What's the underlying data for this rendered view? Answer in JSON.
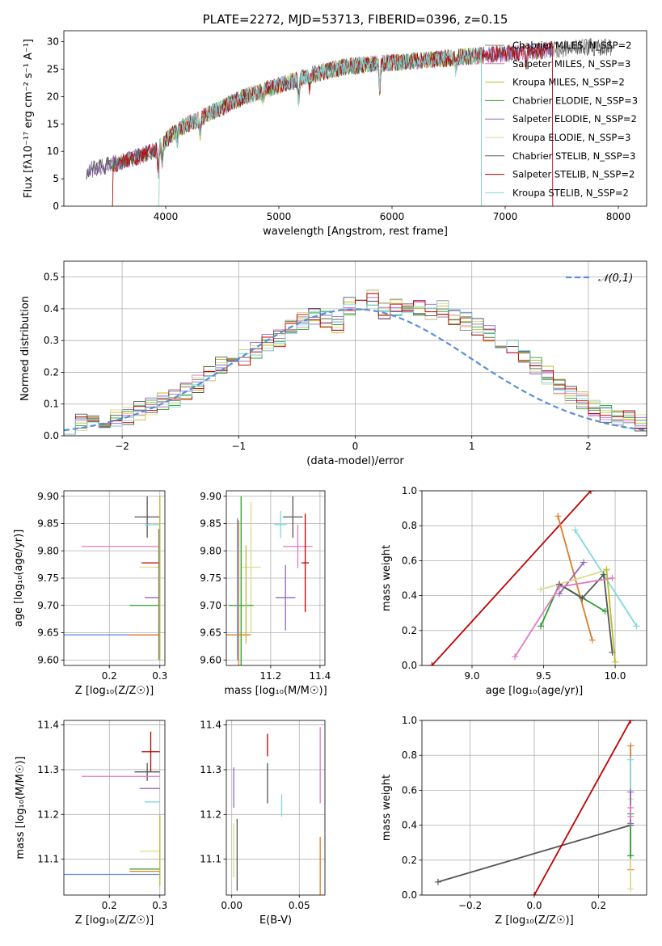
{
  "figure": {
    "background": "#ffffff",
    "palette": {
      "Chabrier MILES": "#7f7f7f",
      "Salpeter MILES": "#e377c2",
      "Kroupa MILES": "#bcbd22",
      "Chabrier ELODIE": "#2ca02c",
      "Salpeter ELODIE": "#9467bd",
      "Kroupa ELODIE": "#dbdb8d",
      "Chabrier STELIB": "#555555",
      "Salpeter STELIB": "#c00000",
      "Kroupa STELIB": "#7fd9e0",
      "normal": "#5b8ed6",
      "extra_orange": "#e07b27",
      "extra_blue": "#6a8fd8",
      "extra_green": "#4c8f4c"
    }
  },
  "chart_data": [
    {
      "id": "spectrum",
      "type": "line",
      "title": "PLATE=2272, MJD=53713, FIBERID=0396, z=0.15",
      "xlabel": "wavelength [Angstrom, rest frame]",
      "ylabel": "Flux [fλ10⁻¹⁷ erg cm⁻² s⁻¹ A⁻¹]",
      "xlim": [
        3100,
        8250
      ],
      "ylim": [
        0,
        32
      ],
      "xticks": [
        4000,
        5000,
        6000,
        7000,
        8000
      ],
      "yticks": [
        0,
        5,
        10,
        15,
        20,
        25,
        30
      ],
      "grid": false,
      "legend_position": "top-right",
      "series": [
        {
          "name": "Chabrier MILES, N_SSP=2",
          "color": "#7f7f7f"
        },
        {
          "name": "Salpeter MILES, N_SSP=3",
          "color": "#e377c2"
        },
        {
          "name": "Kroupa MILES, N_SSP=2",
          "color": "#bcbd22"
        },
        {
          "name": "Chabrier ELODIE, N_SSP=3",
          "color": "#2ca02c"
        },
        {
          "name": "Salpeter ELODIE, N_SSP=2",
          "color": "#9467bd"
        },
        {
          "name": "Kroupa ELODIE, N_SSP=3",
          "color": "#dbdb8d"
        },
        {
          "name": "Chabrier STELIB, N_SSP=3",
          "color": "#555555"
        },
        {
          "name": "Salpeter STELIB, N_SSP=2",
          "color": "#c00000"
        },
        {
          "name": "Kroupa STELIB, N_SSP=2",
          "color": "#7fd9e0"
        }
      ],
      "continuum": {
        "x": [
          3300,
          3600,
          3900,
          4100,
          4400,
          4700,
          5000,
          5300,
          5600,
          5900,
          6200,
          6500,
          6800,
          7100,
          7400,
          7700,
          7950
        ],
        "y": [
          6.5,
          8,
          10,
          14,
          17,
          20,
          22,
          24,
          25.5,
          26,
          26.5,
          27,
          27.5,
          28,
          28.5,
          29,
          29
        ]
      }
    },
    {
      "id": "residuals",
      "type": "histogram",
      "xlabel": "(data-model)/error",
      "ylabel": "Normed distribution",
      "xlim": [
        -2.5,
        2.5
      ],
      "ylim": [
        0,
        0.55
      ],
      "xticks": [
        -2,
        -1,
        0,
        1,
        2
      ],
      "yticks": [
        0.0,
        0.1,
        0.2,
        0.3,
        0.4,
        0.5
      ],
      "grid": true,
      "legend_position": "top-right",
      "legend": [
        "𝒩(0,1)"
      ],
      "bin_edges_start": -2.5,
      "bin_width": 0.1,
      "base_heights": [
        0.035,
        0.04,
        0.045,
        0.05,
        0.055,
        0.06,
        0.08,
        0.095,
        0.11,
        0.12,
        0.14,
        0.165,
        0.19,
        0.22,
        0.23,
        0.25,
        0.27,
        0.29,
        0.31,
        0.34,
        0.36,
        0.38,
        0.37,
        0.35,
        0.41,
        0.4,
        0.43,
        0.39,
        0.4,
        0.41,
        0.4,
        0.39,
        0.4,
        0.38,
        0.36,
        0.34,
        0.32,
        0.3,
        0.28,
        0.25,
        0.22,
        0.19,
        0.16,
        0.13,
        0.11,
        0.09,
        0.07,
        0.06,
        0.05,
        0.04
      ]
    },
    {
      "id": "age_vs_Z",
      "type": "errorbar",
      "xlabel": "Z [log₁₀(Z/Z☉)]",
      "ylabel": "age  [log₁₀(age/yr)]",
      "xlim": [
        0.11,
        0.31
      ],
      "ylim": [
        9.59,
        9.91
      ],
      "xticks": [
        0.2,
        0.3
      ],
      "yticks": [
        9.6,
        9.65,
        9.7,
        9.75,
        9.8,
        9.85,
        9.9
      ],
      "grid": true,
      "points": [
        {
          "x": 0.275,
          "y": 9.862,
          "xerr": [
            0.025,
            0.025
          ],
          "yerr": 0.038,
          "color": "#555555"
        },
        {
          "x": 0.285,
          "y": 9.848,
          "xerr": [
            0.015,
            0.015
          ],
          "yerr": 0,
          "color": "#7fd9e0"
        },
        {
          "x": 0.23,
          "y": 9.808,
          "xerr": [
            0.085,
            0.07
          ],
          "yerr": 0,
          "color": "#e377c2"
        },
        {
          "x": 0.282,
          "y": 9.778,
          "xerr": [
            0.018,
            0.018
          ],
          "yerr": 0,
          "color": "#c00000"
        },
        {
          "x": 0.28,
          "y": 9.77,
          "xerr": [
            0.02,
            0.02
          ],
          "yerr": 0,
          "color": "#dbdb8d"
        },
        {
          "x": 0.285,
          "y": 9.714,
          "xerr": [
            0.015,
            0.015
          ],
          "yerr": 0,
          "color": "#9467bd"
        },
        {
          "x": 0.27,
          "y": 9.7,
          "xerr": [
            0.03,
            0.03
          ],
          "yerr": 0,
          "color": "#2ca02c"
        },
        {
          "x": 0.23,
          "y": 9.646,
          "xerr": [
            0.12,
            0.07
          ],
          "yerr": 0,
          "color": "#6a8fd8"
        },
        {
          "x": 0.27,
          "y": 9.646,
          "xerr": [
            0.03,
            0.03
          ],
          "yerr": 0,
          "color": "#e07b27"
        },
        {
          "x": 0.3,
          "y": 9.75,
          "xerr": [
            0,
            0
          ],
          "yerr": 0.15,
          "color": "#bcbd22"
        },
        {
          "x": 0.298,
          "y": 9.72,
          "xerr": [
            0,
            0
          ],
          "yerr": 0.12,
          "color": "#7f7f7f"
        }
      ]
    },
    {
      "id": "age_vs_mass",
      "type": "errorbar",
      "xlabel": "mass [log₁₀(M/M☉)]",
      "ylabel": "",
      "xlim": [
        11.02,
        11.42
      ],
      "ylim": [
        9.59,
        9.91
      ],
      "xticks": [
        11.2,
        11.4
      ],
      "yticks": [
        9.6,
        9.65,
        9.7,
        9.75,
        9.8,
        9.85,
        9.9
      ],
      "grid": true,
      "points": [
        {
          "x": 11.29,
          "y": 9.862,
          "xerr": 0.04,
          "yerr": 0.038,
          "color": "#555555"
        },
        {
          "x": 11.24,
          "y": 9.848,
          "xerr": 0.025,
          "yerr": 0.025,
          "color": "#7fd9e0"
        },
        {
          "x": 11.31,
          "y": 9.808,
          "xerr": 0.06,
          "yerr": 0.04,
          "color": "#e377c2"
        },
        {
          "x": 11.34,
          "y": 9.778,
          "xerr": 0.015,
          "yerr": 0.09,
          "color": "#c00000"
        },
        {
          "x": 11.12,
          "y": 9.77,
          "xerr": 0.04,
          "yerr": 0.12,
          "color": "#dbdb8d"
        },
        {
          "x": 11.26,
          "y": 9.714,
          "xerr": 0.04,
          "yerr": 0.06,
          "color": "#9467bd"
        },
        {
          "x": 11.08,
          "y": 9.7,
          "xerr": 0.05,
          "yerr": 0.2,
          "color": "#2ca02c"
        },
        {
          "x": 11.07,
          "y": 9.646,
          "xerr": 0.05,
          "yerr": 0.21,
          "color": "#e07b27"
        },
        {
          "x": 11.065,
          "y": 9.73,
          "xerr": 0,
          "yerr": 0.13,
          "color": "#6a8fd8"
        },
        {
          "x": 11.1,
          "y": 9.72,
          "xerr": 0,
          "yerr": 0.09,
          "color": "#bcbd22"
        }
      ]
    },
    {
      "id": "weight_vs_age",
      "type": "line",
      "xlabel": "age  [log₁₀(age/yr)]",
      "ylabel": "mass weight",
      "xlim": [
        8.65,
        10.22
      ],
      "ylim": [
        0.0,
        1.0
      ],
      "xticks": [
        9.0,
        9.5,
        10.0
      ],
      "yticks": [
        0.0,
        0.2,
        0.4,
        0.6,
        0.8,
        1.0
      ],
      "grid": true,
      "series": [
        {
          "color": "#c00000",
          "x": [
            8.72,
            9.83
          ],
          "y": [
            0.0,
            1.0
          ]
        },
        {
          "color": "#e07b27",
          "x": [
            9.6,
            9.84
          ],
          "y": [
            0.855,
            0.145
          ]
        },
        {
          "color": "#7fd9e0",
          "x": [
            9.72,
            10.15
          ],
          "y": [
            0.775,
            0.225
          ]
        },
        {
          "color": "#9467bd",
          "x": [
            9.61,
            9.78
          ],
          "y": [
            0.41,
            0.59
          ]
        },
        {
          "color": "#dbdb8d",
          "x": [
            9.48,
            9.94
          ],
          "y": [
            0.435,
            0.545
          ]
        },
        {
          "color": "#2ca02c",
          "x": [
            9.48,
            9.61,
            9.93
          ],
          "y": [
            0.225,
            0.465,
            0.31
          ]
        },
        {
          "color": "#555555",
          "x": [
            9.61,
            9.77,
            9.92,
            9.98
          ],
          "y": [
            0.465,
            0.385,
            0.52,
            0.075
          ]
        },
        {
          "color": "#e377c2",
          "x": [
            9.3,
            9.61,
            9.98
          ],
          "y": [
            0.05,
            0.45,
            0.5
          ]
        },
        {
          "color": "#bcbd22",
          "x": [
            9.94,
            10.0
          ],
          "y": [
            0.55,
            0.02
          ]
        }
      ]
    },
    {
      "id": "mass_vs_Z",
      "type": "errorbar",
      "xlabel": "Z [log₁₀(Z/Z☉)]",
      "ylabel": "mass [log₁₀(M/M☉)]",
      "xlim": [
        0.11,
        0.31
      ],
      "ylim": [
        11.02,
        11.41
      ],
      "xticks": [
        0.2,
        0.3
      ],
      "yticks": [
        11.1,
        11.2,
        11.3,
        11.4
      ],
      "grid": true,
      "points": [
        {
          "x": 0.282,
          "y": 11.34,
          "xerr": [
            0.018,
            0.018
          ],
          "yerr": 0.045,
          "color": "#c00000"
        },
        {
          "x": 0.275,
          "y": 11.295,
          "xerr": [
            0.025,
            0.025
          ],
          "yerr": 0.02,
          "color": "#555555"
        },
        {
          "x": 0.23,
          "y": 11.285,
          "xerr": [
            0.085,
            0.07
          ],
          "yerr": 0,
          "color": "#e377c2"
        },
        {
          "x": 0.28,
          "y": 11.258,
          "xerr": [
            0.02,
            0.02
          ],
          "yerr": 0,
          "color": "#9467bd"
        },
        {
          "x": 0.285,
          "y": 11.228,
          "xerr": [
            0.015,
            0.015
          ],
          "yerr": 0,
          "color": "#7fd9e0"
        },
        {
          "x": 0.28,
          "y": 11.118,
          "xerr": [
            0.02,
            0.02
          ],
          "yerr": 0,
          "color": "#dbdb8d"
        },
        {
          "x": 0.27,
          "y": 11.078,
          "xerr": [
            0.03,
            0.03
          ],
          "yerr": 0,
          "color": "#2ca02c"
        },
        {
          "x": 0.27,
          "y": 11.073,
          "xerr": [
            0.03,
            0.03
          ],
          "yerr": 0,
          "color": "#e07b27"
        },
        {
          "x": 0.23,
          "y": 11.066,
          "xerr": [
            0.12,
            0.07
          ],
          "yerr": 0,
          "color": "#6a8fd8"
        },
        {
          "x": 0.3,
          "y": 11.12,
          "xerr": [
            0,
            0
          ],
          "yerr": 0.08,
          "color": "#bcbd22"
        }
      ]
    },
    {
      "id": "mass_vs_ebv",
      "type": "errorbar",
      "xlabel": "E(B-V)",
      "ylabel": "",
      "xlim": [
        -0.004,
        0.069
      ],
      "ylim": [
        11.02,
        11.41
      ],
      "xticks": [
        0.0,
        0.05
      ],
      "yticks": [
        11.1,
        11.2,
        11.3,
        11.4
      ],
      "grid": true,
      "points": [
        {
          "x": 0.0265,
          "y": 11.355,
          "xerr": 0,
          "yerr": 0.025,
          "color": "#c00000"
        },
        {
          "x": 0.0265,
          "y": 11.27,
          "xerr": 0,
          "yerr": 0.045,
          "color": "#555555"
        },
        {
          "x": 0.0015,
          "y": 11.26,
          "xerr": 0,
          "yerr": 0.045,
          "color": "#9467bd"
        },
        {
          "x": 0.037,
          "y": 11.22,
          "xerr": 0,
          "yerr": 0.025,
          "color": "#7fd9e0"
        },
        {
          "x": 0.0655,
          "y": 11.31,
          "xerr": 0,
          "yerr": 0.085,
          "color": "#e377c2"
        },
        {
          "x": 0.0015,
          "y": 11.12,
          "xerr": 0,
          "yerr": 0.06,
          "color": "#dbdb8d"
        },
        {
          "x": 0.004,
          "y": 11.11,
          "xerr": 0,
          "yerr": 0.08,
          "color": "#555555"
        },
        {
          "x": 0.0655,
          "y": 11.07,
          "xerr": 0,
          "yerr": 0.08,
          "color": "#e07b27"
        }
      ]
    },
    {
      "id": "weight_vs_Z",
      "type": "line",
      "xlabel": "Z [log₁₀(Z/Z☉)]",
      "ylabel": "mass weight",
      "xlim": [
        -0.35,
        0.35
      ],
      "ylim": [
        0.0,
        1.0
      ],
      "xticks": [
        -0.2,
        0.0,
        0.2
      ],
      "yticks": [
        0.0,
        0.2,
        0.4,
        0.6,
        0.8,
        1.0
      ],
      "grid": true,
      "series": [
        {
          "color": "#555555",
          "x": [
            -0.3,
            0.3
          ],
          "y": [
            0.075,
            0.4
          ]
        },
        {
          "color": "#c00000",
          "x": [
            0.0,
            0.3
          ],
          "y": [
            0.0,
            1.0
          ]
        },
        {
          "color": "#e07b27",
          "x": [
            0.3,
            0.3
          ],
          "y": [
            0.145,
            0.855
          ]
        },
        {
          "color": "#7fd9e0",
          "x": [
            0.3,
            0.3
          ],
          "y": [
            0.225,
            0.775
          ]
        },
        {
          "color": "#dbdb8d",
          "x": [
            0.3,
            0.3
          ],
          "y": [
            0.035,
            0.55
          ]
        },
        {
          "color": "#2ca02c",
          "x": [
            0.3,
            0.3
          ],
          "y": [
            0.225,
            0.465
          ]
        },
        {
          "color": "#9467bd",
          "x": [
            0.3,
            0.3
          ],
          "y": [
            0.41,
            0.59
          ]
        },
        {
          "color": "#e377c2",
          "x": [
            0.3,
            0.3
          ],
          "y": [
            0.45,
            0.5
          ]
        }
      ]
    }
  ]
}
